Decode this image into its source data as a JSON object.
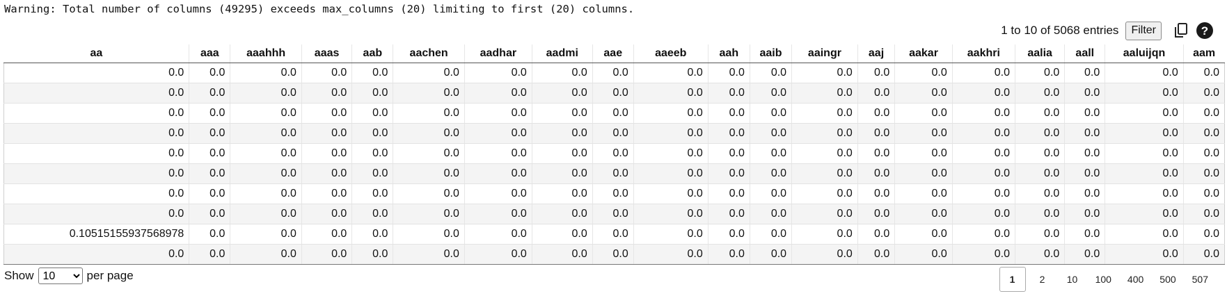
{
  "warning": "Warning: Total number of columns (49295) exceeds max_columns (20) limiting to first (20) columns.",
  "toolbar": {
    "entries_info": "1 to 10 of 5068 entries",
    "filter_label": "Filter",
    "icons": [
      "copy-icon",
      "help-icon"
    ]
  },
  "table": {
    "columns": [
      "aa",
      "aaa",
      "aaahhh",
      "aaas",
      "aab",
      "aachen",
      "aadhar",
      "aadmi",
      "aae",
      "aaeeb",
      "aah",
      "aaib",
      "aaingr",
      "aaj",
      "aakar",
      "aakhri",
      "aalia",
      "aall",
      "aaluijqn",
      "aam"
    ],
    "rows": [
      [
        "0.0",
        "0.0",
        "0.0",
        "0.0",
        "0.0",
        "0.0",
        "0.0",
        "0.0",
        "0.0",
        "0.0",
        "0.0",
        "0.0",
        "0.0",
        "0.0",
        "0.0",
        "0.0",
        "0.0",
        "0.0",
        "0.0",
        "0.0"
      ],
      [
        "0.0",
        "0.0",
        "0.0",
        "0.0",
        "0.0",
        "0.0",
        "0.0",
        "0.0",
        "0.0",
        "0.0",
        "0.0",
        "0.0",
        "0.0",
        "0.0",
        "0.0",
        "0.0",
        "0.0",
        "0.0",
        "0.0",
        "0.0"
      ],
      [
        "0.0",
        "0.0",
        "0.0",
        "0.0",
        "0.0",
        "0.0",
        "0.0",
        "0.0",
        "0.0",
        "0.0",
        "0.0",
        "0.0",
        "0.0",
        "0.0",
        "0.0",
        "0.0",
        "0.0",
        "0.0",
        "0.0",
        "0.0"
      ],
      [
        "0.0",
        "0.0",
        "0.0",
        "0.0",
        "0.0",
        "0.0",
        "0.0",
        "0.0",
        "0.0",
        "0.0",
        "0.0",
        "0.0",
        "0.0",
        "0.0",
        "0.0",
        "0.0",
        "0.0",
        "0.0",
        "0.0",
        "0.0"
      ],
      [
        "0.0",
        "0.0",
        "0.0",
        "0.0",
        "0.0",
        "0.0",
        "0.0",
        "0.0",
        "0.0",
        "0.0",
        "0.0",
        "0.0",
        "0.0",
        "0.0",
        "0.0",
        "0.0",
        "0.0",
        "0.0",
        "0.0",
        "0.0"
      ],
      [
        "0.0",
        "0.0",
        "0.0",
        "0.0",
        "0.0",
        "0.0",
        "0.0",
        "0.0",
        "0.0",
        "0.0",
        "0.0",
        "0.0",
        "0.0",
        "0.0",
        "0.0",
        "0.0",
        "0.0",
        "0.0",
        "0.0",
        "0.0"
      ],
      [
        "0.0",
        "0.0",
        "0.0",
        "0.0",
        "0.0",
        "0.0",
        "0.0",
        "0.0",
        "0.0",
        "0.0",
        "0.0",
        "0.0",
        "0.0",
        "0.0",
        "0.0",
        "0.0",
        "0.0",
        "0.0",
        "0.0",
        "0.0"
      ],
      [
        "0.0",
        "0.0",
        "0.0",
        "0.0",
        "0.0",
        "0.0",
        "0.0",
        "0.0",
        "0.0",
        "0.0",
        "0.0",
        "0.0",
        "0.0",
        "0.0",
        "0.0",
        "0.0",
        "0.0",
        "0.0",
        "0.0",
        "0.0"
      ],
      [
        "0.10515155937568978",
        "0.0",
        "0.0",
        "0.0",
        "0.0",
        "0.0",
        "0.0",
        "0.0",
        "0.0",
        "0.0",
        "0.0",
        "0.0",
        "0.0",
        "0.0",
        "0.0",
        "0.0",
        "0.0",
        "0.0",
        "0.0",
        "0.0"
      ],
      [
        "0.0",
        "0.0",
        "0.0",
        "0.0",
        "0.0",
        "0.0",
        "0.0",
        "0.0",
        "0.0",
        "0.0",
        "0.0",
        "0.0",
        "0.0",
        "0.0",
        "0.0",
        "0.0",
        "0.0",
        "0.0",
        "0.0",
        "0.0"
      ]
    ]
  },
  "footer": {
    "show_label": "Show",
    "per_page_value": "10",
    "per_page_label": "per page",
    "pages": [
      "1",
      "2",
      "10",
      "100",
      "400",
      "500",
      "507"
    ],
    "current_page": "1"
  }
}
